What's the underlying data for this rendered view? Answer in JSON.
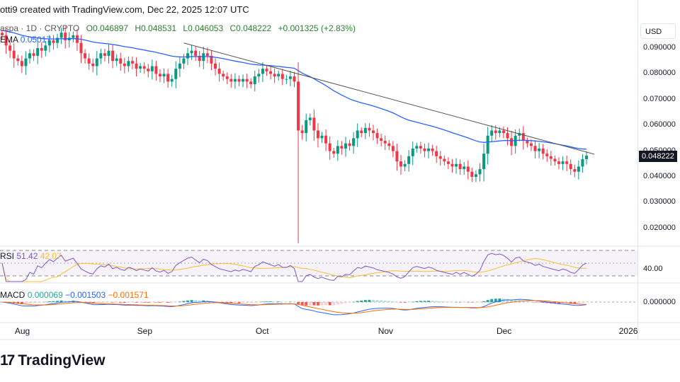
{
  "header": {
    "credit": "otti9 created with TradingView.com, Dec 22, 2025 12:07 UTC"
  },
  "legend": {
    "symbol": "aspa · 1D · CRYPTO",
    "open": "O0.046897",
    "high": "H0.048531",
    "low": "L0.046053",
    "close": "C0.048222",
    "change": "+0.001325 (+2.83%)",
    "ema_label": "EMA",
    "ema_value": "0.05017"
  },
  "rsi": {
    "label": "RSI",
    "value": "51.42",
    "ma_value": "42.07",
    "axis_label": "40.00"
  },
  "macd": {
    "label": "MACD",
    "hist": "0.000069",
    "macd": "−0.001503",
    "signal": "−0.001571",
    "axis_label": "0.000000"
  },
  "axis": {
    "currency": "USD",
    "last_price": "0.048222",
    "ticks": [
      "0.090000",
      "0.080000",
      "0.070000",
      "0.060000",
      "0.050000",
      "0.040000",
      "0.030000",
      "0.020000"
    ]
  },
  "footer": {
    "brand": "TradingView"
  },
  "colors": {
    "up": "#089981",
    "down": "#f23645",
    "ema": "#2962ff",
    "rsi": "#7e57c2",
    "rsi_ma": "#fbc02d",
    "macd": "#2962ff",
    "signal": "#ff6d00",
    "trendline": "#555555"
  },
  "chart_data": {
    "type": "candlestick",
    "x_ticks": [
      "Aug",
      "Sep",
      "Oct",
      "Nov",
      "Dec",
      "2026"
    ],
    "x_range": [
      "2025-07-27",
      "2025-12-22"
    ],
    "ylim": [
      0.014,
      0.098
    ],
    "closes": [
      0.095,
      0.091,
      0.089,
      0.086,
      0.085,
      0.083,
      0.086,
      0.088,
      0.087,
      0.09,
      0.089,
      0.091,
      0.093,
      0.092,
      0.094,
      0.096,
      0.093,
      0.094,
      0.095,
      0.092,
      0.088,
      0.086,
      0.084,
      0.083,
      0.086,
      0.088,
      0.087,
      0.089,
      0.085,
      0.086,
      0.084,
      0.083,
      0.085,
      0.084,
      0.082,
      0.083,
      0.082,
      0.081,
      0.083,
      0.08,
      0.079,
      0.08,
      0.077,
      0.078,
      0.082,
      0.084,
      0.086,
      0.088,
      0.089,
      0.087,
      0.085,
      0.088,
      0.087,
      0.084,
      0.082,
      0.08,
      0.079,
      0.078,
      0.077,
      0.078,
      0.077,
      0.078,
      0.077,
      0.076,
      0.079,
      0.08,
      0.082,
      0.081,
      0.08,
      0.079,
      0.08,
      0.078,
      0.078,
      0.079,
      0.077,
      0.058,
      0.057,
      0.062,
      0.063,
      0.058,
      0.055,
      0.056,
      0.053,
      0.05,
      0.049,
      0.052,
      0.051,
      0.053,
      0.052,
      0.055,
      0.058,
      0.057,
      0.059,
      0.058,
      0.057,
      0.055,
      0.054,
      0.053,
      0.052,
      0.05,
      0.046,
      0.044,
      0.045,
      0.048,
      0.051,
      0.052,
      0.051,
      0.05,
      0.051,
      0.05,
      0.048,
      0.047,
      0.046,
      0.045,
      0.044,
      0.045,
      0.043,
      0.044,
      0.042,
      0.04,
      0.041,
      0.043,
      0.049,
      0.056,
      0.058,
      0.057,
      0.058,
      0.057,
      0.055,
      0.052,
      0.056,
      0.057,
      0.054,
      0.053,
      0.052,
      0.05,
      0.051,
      0.049,
      0.048,
      0.047,
      0.046,
      0.045,
      0.046,
      0.045,
      0.043,
      0.042,
      0.044,
      0.046897,
      0.048222
    ],
    "low_overrides": {
      "2025-10-10": 0.0142
    },
    "ema_period": 50,
    "trendline": [
      {
        "date": "2025-09-11",
        "price": 0.092
      },
      {
        "date": "2025-12-24",
        "price": 0.0488
      }
    ],
    "rsi_levels": [
      70,
      30
    ],
    "grid": false
  }
}
